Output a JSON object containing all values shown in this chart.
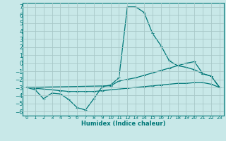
{
  "xlabel": "Humidex (Indice chaleur)",
  "background_color": "#c8e8e8",
  "grid_color": "#a8c8c8",
  "line_color": "#007878",
  "xlim": [
    -0.5,
    23.5
  ],
  "ylim": [
    -6.5,
    7.5
  ],
  "xticks": [
    0,
    1,
    2,
    3,
    4,
    5,
    6,
    7,
    8,
    9,
    10,
    11,
    12,
    13,
    14,
    15,
    16,
    17,
    18,
    19,
    20,
    21,
    22,
    23
  ],
  "yticks": [
    -6,
    -5,
    -4,
    -3,
    -2,
    -1,
    0,
    1,
    2,
    3,
    4,
    5,
    6,
    7
  ],
  "line1_x": [
    0,
    1,
    2,
    3,
    4,
    5,
    6,
    7,
    8,
    9,
    10,
    11,
    12,
    13,
    14,
    15,
    16,
    17,
    18,
    19,
    20,
    21,
    22,
    23
  ],
  "line1_y": [
    -3.0,
    -3.3,
    -4.4,
    -3.7,
    -3.8,
    -4.5,
    -5.5,
    -5.8,
    -4.4,
    -2.9,
    -2.7,
    -1.8,
    7.0,
    7.0,
    6.3,
    3.7,
    2.2,
    0.3,
    -0.3,
    -0.5,
    -0.8,
    -1.3,
    -1.6,
    -3.0
  ],
  "line2_x": [
    0,
    10,
    11,
    12,
    13,
    14,
    15,
    16,
    17,
    18,
    19,
    20,
    21,
    22,
    23
  ],
  "line2_y": [
    -3.0,
    -2.8,
    -2.2,
    -2.0,
    -1.8,
    -1.5,
    -1.2,
    -0.9,
    -0.6,
    -0.3,
    0.0,
    0.2,
    -1.3,
    -1.6,
    -3.0
  ],
  "line3_x": [
    0,
    1,
    2,
    3,
    4,
    5,
    6,
    7,
    8,
    9,
    10,
    11,
    12,
    13,
    14,
    15,
    16,
    17,
    18,
    19,
    20,
    21,
    22,
    23
  ],
  "line3_y": [
    -3.0,
    -3.1,
    -3.2,
    -3.3,
    -3.4,
    -3.5,
    -3.5,
    -3.5,
    -3.5,
    -3.4,
    -3.3,
    -3.2,
    -3.1,
    -3.0,
    -2.9,
    -2.8,
    -2.7,
    -2.6,
    -2.5,
    -2.5,
    -2.4,
    -2.4,
    -2.6,
    -3.0
  ]
}
